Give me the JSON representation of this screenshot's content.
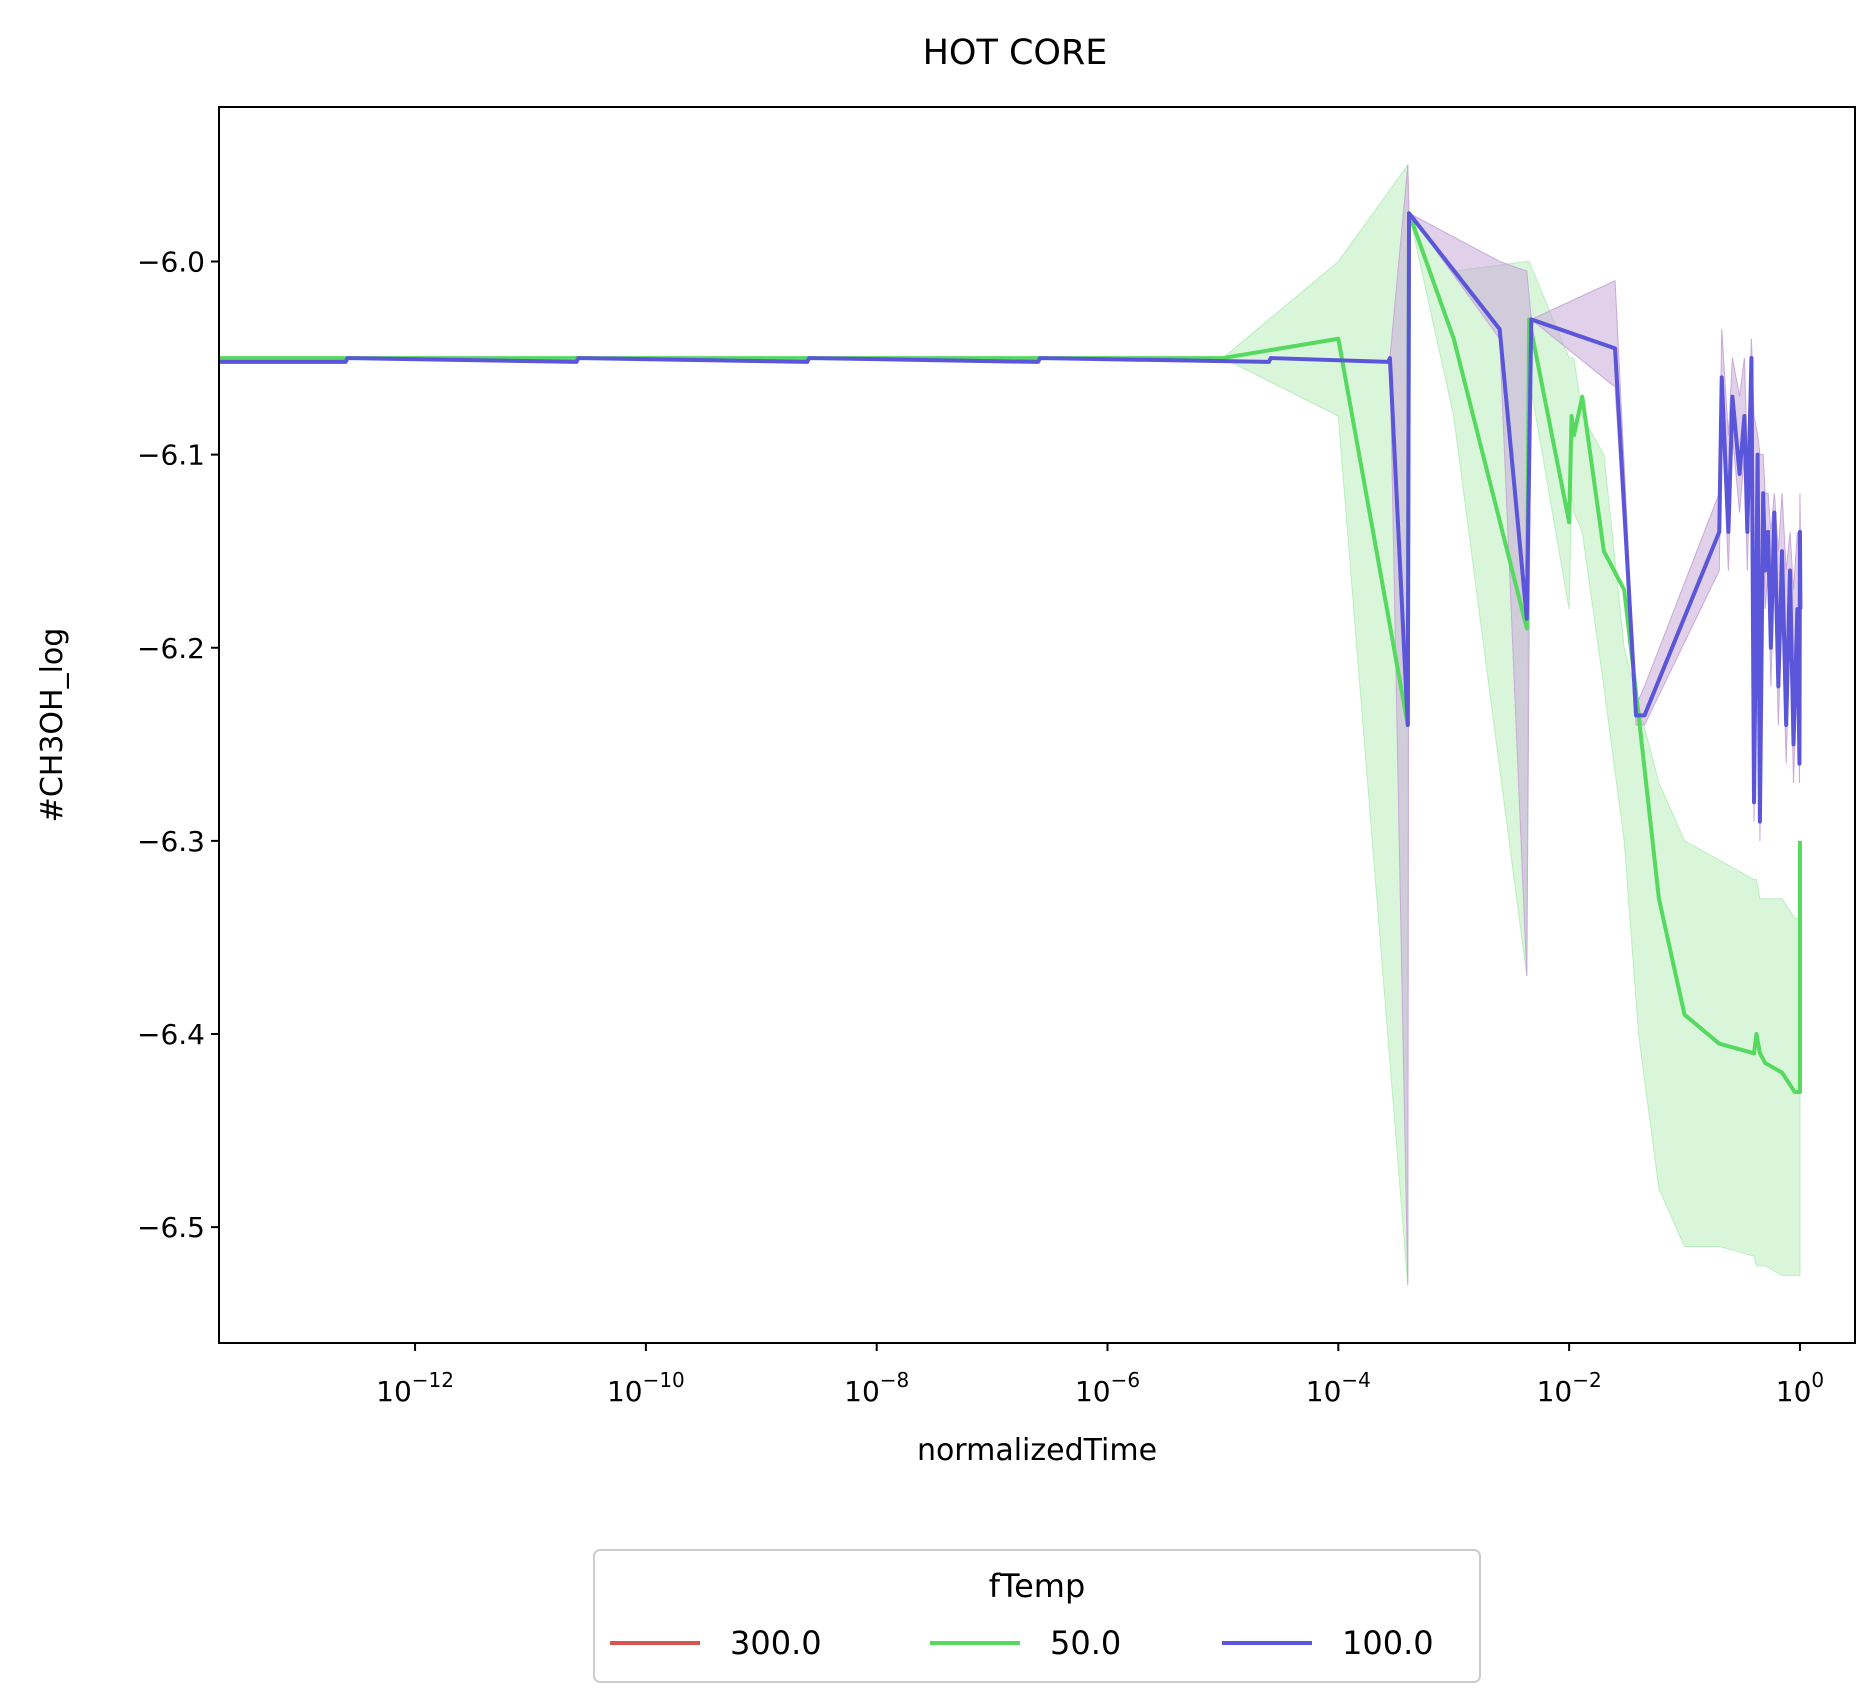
{
  "chart_data": {
    "type": "line",
    "title": "HOT CORE",
    "xlabel": "normalizedTime",
    "ylabel": "#CH3OH_log",
    "xscale": "log",
    "xlim": [
      2e-14,
      3
    ],
    "ylim": [
      -6.56,
      -5.92
    ],
    "x_ticks": [
      {
        "value": 1e-12,
        "base": "10",
        "exp": "−12"
      },
      {
        "value": 1e-10,
        "base": "10",
        "exp": "−10"
      },
      {
        "value": 1e-08,
        "base": "10",
        "exp": "−8"
      },
      {
        "value": 1e-06,
        "base": "10",
        "exp": "−6"
      },
      {
        "value": 0.0001,
        "base": "10",
        "exp": "−4"
      },
      {
        "value": 0.01,
        "base": "10",
        "exp": "−2"
      },
      {
        "value": 1,
        "base": "10",
        "exp": "0"
      }
    ],
    "y_ticks": [
      {
        "value": -6.0,
        "label": "−6.0"
      },
      {
        "value": -6.1,
        "label": "−6.1"
      },
      {
        "value": -6.2,
        "label": "−6.2"
      },
      {
        "value": -6.3,
        "label": "−6.3"
      },
      {
        "value": -6.4,
        "label": "−6.4"
      },
      {
        "value": -6.5,
        "label": "−6.5"
      }
    ],
    "grid": false,
    "legend": {
      "title": "fTemp",
      "placement": "bottom-center",
      "columns": 3
    },
    "series": [
      {
        "name": "300.0",
        "color": "#d9534f",
        "x": [],
        "y": []
      },
      {
        "name": "50.0",
        "color": "#55d95f",
        "band_color": "#b9efbd",
        "x": [
          2e-14,
          1e-12,
          1e-10,
          1e-08,
          1e-06,
          1e-05,
          0.0001,
          0.0004,
          0.00041,
          0.001,
          0.0043,
          0.0045,
          0.01,
          0.0105,
          0.011,
          0.013,
          0.02,
          0.03,
          0.04,
          0.06,
          0.1,
          0.2,
          0.4,
          0.42,
          0.45,
          0.5,
          0.7,
          0.9,
          1.0,
          1.0
        ],
        "y": [
          -6.05,
          -6.05,
          -6.05,
          -6.05,
          -6.05,
          -6.05,
          -6.04,
          -6.24,
          -5.975,
          -6.04,
          -6.19,
          -6.03,
          -6.135,
          -6.08,
          -6.09,
          -6.07,
          -6.15,
          -6.17,
          -6.235,
          -6.33,
          -6.39,
          -6.405,
          -6.41,
          -6.4,
          -6.41,
          -6.415,
          -6.42,
          -6.43,
          -6.43,
          -6.3
        ],
        "band_upper": [
          -6.05,
          -6.05,
          -6.05,
          -6.05,
          -6.05,
          -6.05,
          -6.0,
          -5.95,
          -5.975,
          -6.005,
          -6.0,
          -6.0,
          -6.05,
          -6.05,
          -6.05,
          -6.08,
          -6.1,
          -6.2,
          -6.23,
          -6.27,
          -6.3,
          -6.31,
          -6.32,
          -6.32,
          -6.33,
          -6.33,
          -6.33,
          -6.34,
          -6.34,
          -6.34
        ],
        "band_lower": [
          -6.05,
          -6.05,
          -6.05,
          -6.05,
          -6.05,
          -6.05,
          -6.08,
          -6.53,
          -5.975,
          -6.08,
          -6.37,
          -6.06,
          -6.18,
          -6.12,
          -6.13,
          -6.14,
          -6.22,
          -6.3,
          -6.4,
          -6.48,
          -6.51,
          -6.51,
          -6.515,
          -6.52,
          -6.52,
          -6.52,
          -6.525,
          -6.525,
          -6.525,
          -6.525
        ]
      },
      {
        "name": "100.0",
        "color": "#5a55d9",
        "band_color": "#c9a9d9",
        "x": [
          2e-14,
          2.5e-13,
          2.6e-13,
          2.5e-11,
          2.6e-11,
          2.5e-09,
          2.6e-09,
          2.5e-07,
          2.6e-07,
          2.5e-05,
          2.6e-05,
          0.00027,
          0.00028,
          0.0004,
          0.00041,
          0.0025,
          0.0043,
          0.0047,
          0.025,
          0.038,
          0.045,
          0.2,
          0.21,
          0.24,
          0.26,
          0.3,
          0.33,
          0.35,
          0.38,
          0.4,
          0.43,
          0.45,
          0.48,
          0.5,
          0.53,
          0.56,
          0.6,
          0.65,
          0.7,
          0.76,
          0.82,
          0.88,
          0.95,
          0.99,
          1.0,
          1.01
        ],
        "y": [
          -6.052,
          -6.052,
          -6.05,
          -6.052,
          -6.05,
          -6.052,
          -6.05,
          -6.052,
          -6.05,
          -6.052,
          -6.05,
          -6.052,
          -6.05,
          -6.24,
          -5.975,
          -6.035,
          -6.185,
          -6.03,
          -6.045,
          -6.235,
          -6.235,
          -6.14,
          -6.06,
          -6.14,
          -6.07,
          -6.11,
          -6.08,
          -6.14,
          -6.05,
          -6.28,
          -6.1,
          -6.29,
          -6.12,
          -6.16,
          -6.14,
          -6.2,
          -6.13,
          -6.22,
          -6.15,
          -6.24,
          -6.16,
          -6.25,
          -6.18,
          -6.26,
          -6.14,
          -6.18
        ],
        "band_upper": [
          -6.052,
          -6.052,
          -6.05,
          -6.052,
          -6.05,
          -6.052,
          -6.05,
          -6.052,
          -6.05,
          -6.052,
          -6.05,
          -6.052,
          -6.05,
          -5.95,
          -5.975,
          -6.0,
          -6.005,
          -6.03,
          -6.01,
          -6.23,
          -6.22,
          -6.12,
          -6.035,
          -6.09,
          -6.05,
          -6.07,
          -6.05,
          -6.1,
          -6.04,
          -6.08,
          -6.09,
          -6.1,
          -6.1,
          -6.12,
          -6.12,
          -6.14,
          -6.12,
          -6.15,
          -6.12,
          -6.16,
          -6.14,
          -6.17,
          -6.14,
          -6.16,
          -6.12,
          -6.14
        ],
        "band_lower": [
          -6.052,
          -6.052,
          -6.05,
          -6.052,
          -6.05,
          -6.052,
          -6.05,
          -6.052,
          -6.05,
          -6.052,
          -6.05,
          -6.052,
          -6.05,
          -6.53,
          -5.975,
          -6.04,
          -6.37,
          -6.03,
          -6.065,
          -6.24,
          -6.24,
          -6.16,
          -6.08,
          -6.16,
          -6.09,
          -6.13,
          -6.1,
          -6.16,
          -6.08,
          -6.29,
          -6.12,
          -6.3,
          -6.14,
          -6.18,
          -6.16,
          -6.22,
          -6.16,
          -6.24,
          -6.18,
          -6.26,
          -6.19,
          -6.27,
          -6.2,
          -6.27,
          -6.17,
          -6.2
        ]
      }
    ]
  }
}
